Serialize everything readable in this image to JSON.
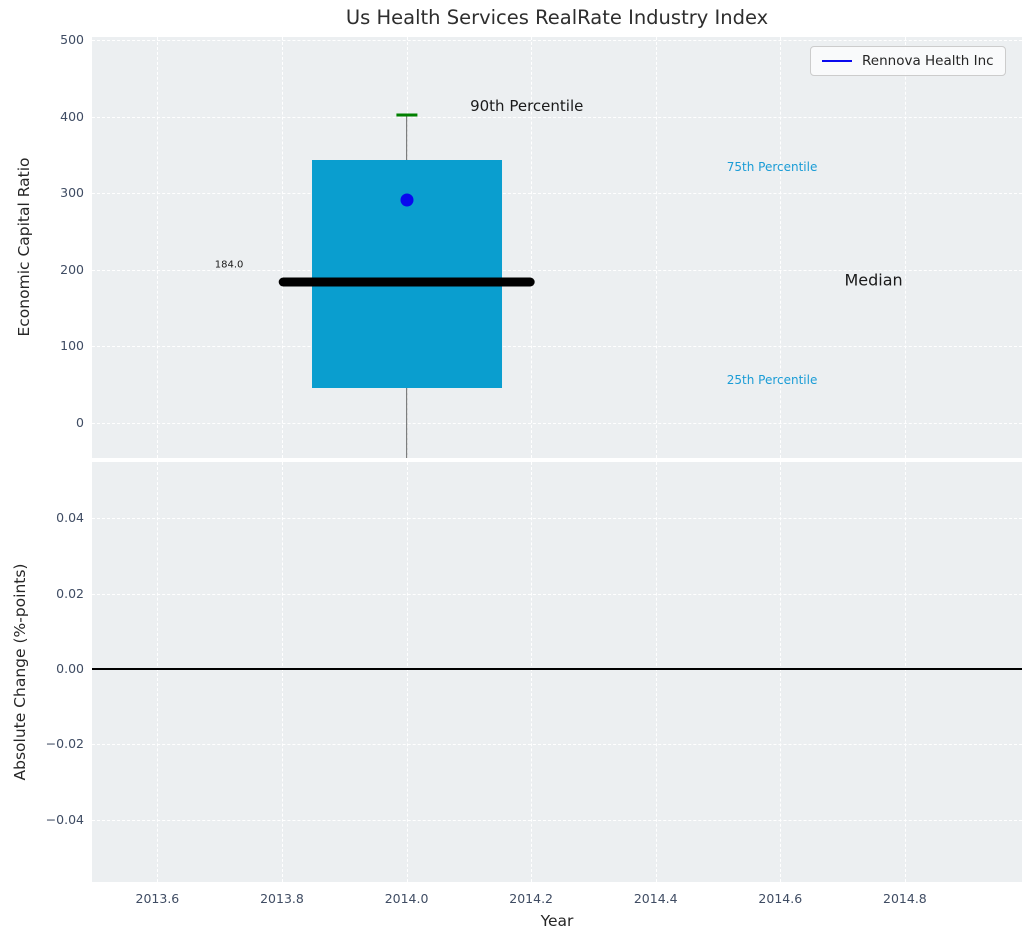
{
  "title": "Us Health Services RealRate Industry Index",
  "legend": {
    "label": "Rennova Health Inc"
  },
  "colors": {
    "axes_bg": "#eceff1",
    "grid": "#ffffff",
    "box_fill": "#0a9ecf",
    "median_line": "#000000",
    "whisker": "#616161",
    "cap_90th": "#008000",
    "company_point": "#0909ee",
    "legend_line": "#0909ee",
    "tick_label": "#3f4c63",
    "percentile_text": "#1a9cd6",
    "dark_text": "#1a1a1a",
    "zero_line": "#000000"
  },
  "chart_data": [
    {
      "type": "box",
      "subplot": "top",
      "ylabel": "Economic Capital Ratio",
      "xlabel": "",
      "xlim": [
        2013.495,
        2014.988
      ],
      "ylim": [
        -46,
        504
      ],
      "grid": true,
      "yticks": {
        "values": [
          0,
          100,
          200,
          300,
          400,
          500
        ],
        "labels": [
          "0",
          "100",
          "200",
          "300",
          "400",
          "500"
        ]
      },
      "box": {
        "x": 2014.0,
        "q1": 46,
        "median": 184,
        "q3": 343,
        "p90": 402,
        "whisker_draw_low": -46,
        "box_width_years": 0.305,
        "median_width_years": 0.412,
        "cap_width_years": 0.034
      },
      "series": [
        {
          "name": "Rennova Health Inc",
          "x": 2014.0,
          "y": 291
        }
      ],
      "annotations": [
        {
          "id": "label-90th-percentile",
          "text": "90th Percentile",
          "x": 2014.102,
          "y": 414,
          "color_key": "dark_text",
          "size": 15,
          "anchor": "left"
        },
        {
          "id": "label-median-value",
          "text": "184.0",
          "x": 2013.738,
          "y": 206,
          "color_key": "dark_text",
          "size": 10,
          "anchor": "right"
        },
        {
          "id": "label-75th-percentile",
          "text": "75th Percentile",
          "x": 2014.514,
          "y": 334,
          "color_key": "percentile_text",
          "size": 12,
          "anchor": "left"
        },
        {
          "id": "label-median",
          "text": "Median",
          "x": 2014.703,
          "y": 186,
          "color_key": "dark_text",
          "size": 16,
          "anchor": "left"
        },
        {
          "id": "label-25th-percentile",
          "text": "25th Percentile",
          "x": 2014.514,
          "y": 56,
          "color_key": "percentile_text",
          "size": 12,
          "anchor": "left"
        }
      ]
    },
    {
      "type": "line",
      "subplot": "bottom",
      "ylabel": "Absolute Change (%-points)",
      "xlabel": "Year",
      "xlim": [
        2013.495,
        2014.988
      ],
      "ylim": [
        -0.0565,
        0.0549
      ],
      "grid": true,
      "yticks": {
        "values": [
          0.04,
          0.02,
          0.0,
          -0.02,
          -0.04
        ],
        "labels": [
          "0.04",
          "0.02",
          "0.00",
          "−0.02",
          "−0.04"
        ]
      },
      "zero_line": 0.0,
      "series": []
    }
  ],
  "xticks": {
    "values": [
      2013.6,
      2013.8,
      2014.0,
      2014.2,
      2014.4,
      2014.6,
      2014.8
    ],
    "labels": [
      "2013.6",
      "2013.8",
      "2014.0",
      "2014.2",
      "2014.4",
      "2014.6",
      "2014.8"
    ]
  }
}
